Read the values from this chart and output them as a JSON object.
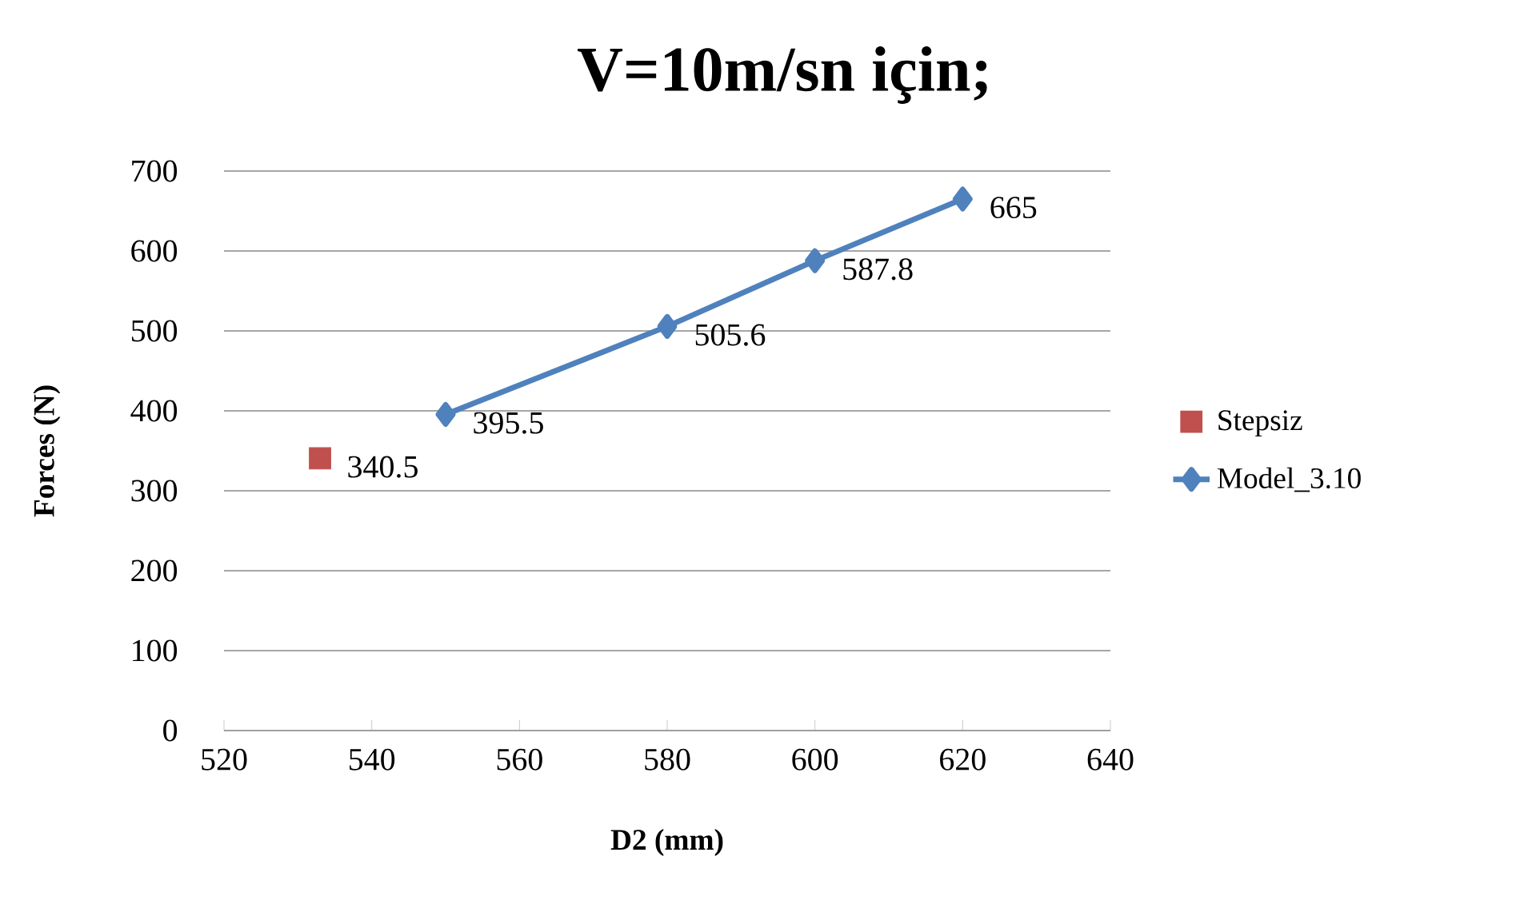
{
  "chart_data": {
    "type": "line",
    "title": "V=10m/sn için;",
    "xlabel": "D2  (mm)",
    "ylabel": "Forces  (N)",
    "xlim": [
      520,
      640
    ],
    "xticks": [
      520,
      540,
      560,
      580,
      600,
      620,
      640
    ],
    "ylim": [
      0,
      700
    ],
    "yticks": [
      0,
      100,
      200,
      300,
      400,
      500,
      600,
      700
    ],
    "grid": "y",
    "legend": "right",
    "data_labels": true,
    "series": [
      {
        "name": "Stepsiz",
        "type": "scatter",
        "marker": "square",
        "color": "#c0504d",
        "x": [
          533
        ],
        "values": [
          340.5
        ]
      },
      {
        "name": "Model_3.10",
        "marker": "diamond",
        "line_style": "solid",
        "color": "#4f81bd",
        "x": [
          550,
          580,
          600,
          620
        ],
        "values": [
          395.5,
          505.6,
          587.8,
          665
        ]
      }
    ]
  }
}
